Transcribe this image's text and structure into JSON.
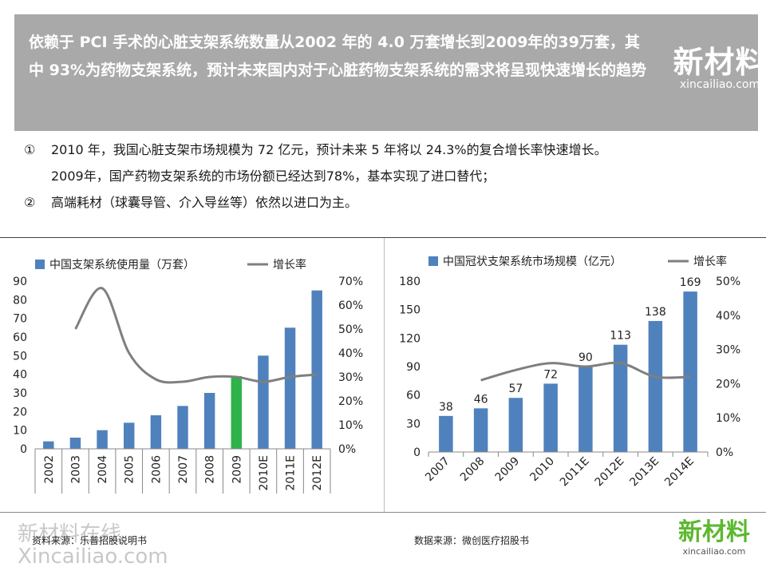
{
  "header": {
    "title": "依赖于 PCI 手术的心脏支架系统数量从2002  年的 4.0 万套增长到2009年的39万套，其中 93%为药物支架系统，预计未来国内对于心脏药物支架系统的需求将呈现快速增长的趋势"
  },
  "logo": {
    "cn": "新材料",
    "en": "xincailiao.com"
  },
  "bullets": [
    {
      "marker": "①",
      "text": "2010 年，我国心脏支架市场规模为 72 亿元，预计未来 5 年将以 24.3%的复合增长率快速增长。"
    },
    {
      "marker": "",
      "text": "2009年，国产药物支架系统的市场份额已经达到78%，基本实现了进口替代；"
    },
    {
      "marker": "②",
      "text": "高端耗材（球囊导管、介入导丝等）依然以进口为主。"
    }
  ],
  "footer": {
    "source_left": "资料来源：乐普招股说明书",
    "source_right": "数据来源：微创医疗招股书",
    "watermark": "新材料在线",
    "watermark_en": "Xincailiao.com"
  },
  "colors": {
    "bar": "#4f81bd",
    "bar_highlight": "#2db34a",
    "line": "#7f7f7f",
    "header_bg": "#a9a9a9",
    "logo_green": "#5cb82e"
  },
  "chart_data": [
    {
      "type": "bar",
      "categories": [
        "2002",
        "2003",
        "2004",
        "2005",
        "2006",
        "2007",
        "2008",
        "2009",
        "2010E",
        "2011E",
        "2012E"
      ],
      "series": [
        {
          "name": "中国支架系统使用量（万套）",
          "values": [
            4,
            6,
            10,
            14,
            18,
            23,
            30,
            39,
            50,
            65,
            85
          ],
          "axis": "left"
        },
        {
          "name": "增长率",
          "type": "line",
          "values": [
            null,
            0.5,
            0.67,
            0.4,
            0.29,
            0.28,
            0.3,
            0.3,
            0.28,
            0.3,
            0.31
          ],
          "axis": "right"
        }
      ],
      "highlight_index": 7,
      "ylim": [
        0,
        90
      ],
      "yticks": [
        "0",
        "10",
        "20",
        "30",
        "40",
        "50",
        "60",
        "70",
        "80",
        "90"
      ],
      "y2lim": [
        0,
        0.7
      ],
      "y2ticks": [
        "0%",
        "10%",
        "20%",
        "30%",
        "40%",
        "50%",
        "60%",
        "70%"
      ],
      "legend": "top"
    },
    {
      "type": "bar",
      "categories": [
        "2007",
        "2008",
        "2009",
        "2010",
        "2011E",
        "2012E",
        "2013E",
        "2014E"
      ],
      "series": [
        {
          "name": "中国冠状支架系统市场规模（亿元）",
          "values": [
            38,
            46,
            57,
            72,
            90,
            113,
            138,
            169
          ],
          "labels": [
            "38",
            "46",
            "57",
            "72",
            "90",
            "113",
            "138",
            "169"
          ],
          "axis": "left"
        },
        {
          "name": "增长率",
          "type": "line",
          "values": [
            null,
            0.21,
            0.24,
            0.26,
            0.25,
            0.26,
            0.22,
            0.22
          ],
          "axis": "right"
        }
      ],
      "ylim": [
        0,
        180
      ],
      "yticks": [
        "0",
        "30",
        "60",
        "90",
        "120",
        "150",
        "180"
      ],
      "y2lim": [
        0,
        0.5
      ],
      "y2ticks": [
        "0%",
        "10%",
        "20%",
        "30%",
        "40%",
        "50%"
      ],
      "legend": "top"
    }
  ]
}
